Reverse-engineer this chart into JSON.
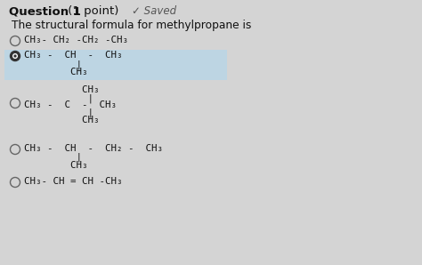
{
  "bg_color": "#d4d4d4",
  "highlight_color": "#bdd5e3",
  "circle_color": "#666666",
  "filled_ring_color": "#333333",
  "text_color": "#111111",
  "saved_color": "#555555",
  "header_bold": "Question 1",
  "header_normal": " (1 point)",
  "saved_text": "✓ Saved",
  "question_text": "The structural formula for methylpropane is",
  "opt1": "CH₃- CH₂ -CH₂ -CH₃",
  "opt2_line1": "CH₃ -  CH  -  CH₃",
  "opt2_line2": "         |",
  "opt2_line3": "        CH₃",
  "opt3_top": "        CH₃",
  "opt3_bar1": "         |",
  "opt3_mid": "CH₃ -  C  -  CH₃",
  "opt3_bar2": "         |",
  "opt3_bot": "        CH₃",
  "opt4_line1": "CH₃ -  CH  -  CH₂ -  CH₃",
  "opt4_line2": "         |",
  "opt4_line3": "        CH₃",
  "opt5": "CH₃- CH = CH -CH₃",
  "fs_header": 9.5,
  "fs_question": 8.8,
  "fs_formula": 7.8
}
